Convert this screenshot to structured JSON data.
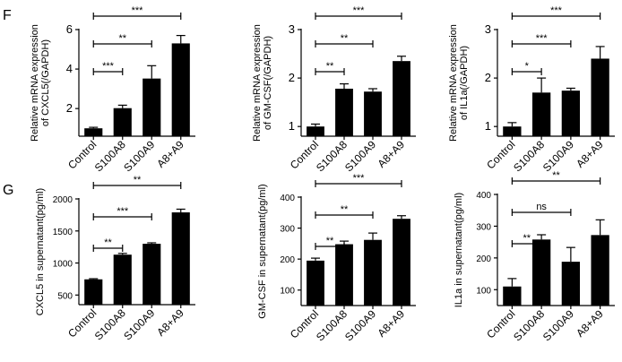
{
  "panels": [
    {
      "letter": "F"
    },
    {
      "letter": "G"
    }
  ],
  "chart_data": [
    {
      "type": "bar",
      "row": 0,
      "ylabel_lines": [
        "Relative mRNA expression",
        "of CXCL5(/GAPDH)"
      ],
      "categories": [
        "Control",
        "S100A8",
        "S100A9",
        "A8+A9"
      ],
      "values": [
        1.0,
        2.02,
        3.52,
        5.3
      ],
      "errors": [
        0.05,
        0.15,
        0.65,
        0.4
      ],
      "ylim": [
        0.6,
        6
      ],
      "yticks": [
        2,
        4,
        6
      ],
      "sig": [
        {
          "from": 0,
          "to": 1,
          "label": "***"
        },
        {
          "from": 0,
          "to": 2,
          "label": "**"
        },
        {
          "from": 0,
          "to": 3,
          "label": "***"
        }
      ]
    },
    {
      "type": "bar",
      "row": 0,
      "ylabel_lines": [
        "Relative mRNA expression",
        "of GM-CSF(/GAPDH)"
      ],
      "categories": [
        "Control",
        "S100A8",
        "S100A9",
        "A8+A9"
      ],
      "values": [
        1.0,
        1.78,
        1.72,
        2.35
      ],
      "errors": [
        0.05,
        0.1,
        0.06,
        0.1
      ],
      "ylim": [
        0.8,
        3
      ],
      "yticks": [
        1,
        2,
        3
      ],
      "sig": [
        {
          "from": 0,
          "to": 1,
          "label": "**"
        },
        {
          "from": 0,
          "to": 2,
          "label": "**"
        },
        {
          "from": 0,
          "to": 3,
          "label": "***"
        }
      ]
    },
    {
      "type": "bar",
      "row": 0,
      "ylabel_lines": [
        "Relative mRNA expression",
        "of IL1a(/GAPDH)"
      ],
      "categories": [
        "Control",
        "S100A8",
        "S100A9",
        "A8+A9"
      ],
      "values": [
        1.0,
        1.7,
        1.74,
        2.4
      ],
      "errors": [
        0.08,
        0.3,
        0.05,
        0.25
      ],
      "ylim": [
        0.8,
        3
      ],
      "yticks": [
        1,
        2,
        3
      ],
      "sig": [
        {
          "from": 0,
          "to": 1,
          "label": "*"
        },
        {
          "from": 0,
          "to": 2,
          "label": "***"
        },
        {
          "from": 0,
          "to": 3,
          "label": "***"
        }
      ]
    },
    {
      "type": "bar",
      "row": 1,
      "ylabel_lines": [
        "CXCL5 in supernatant(pg/ml)"
      ],
      "categories": [
        "Control",
        "S100A8",
        "S100A9",
        "A8+A9"
      ],
      "values": [
        745,
        1130,
        1300,
        1790
      ],
      "errors": [
        10,
        20,
        15,
        50
      ],
      "ylim": [
        350,
        2000
      ],
      "yticks": [
        500,
        1000,
        1500,
        2000
      ],
      "sig": [
        {
          "from": 0,
          "to": 1,
          "label": "**"
        },
        {
          "from": 0,
          "to": 2,
          "label": "***"
        },
        {
          "from": 0,
          "to": 3,
          "label": "**"
        }
      ]
    },
    {
      "type": "bar",
      "row": 1,
      "ylabel_lines": [
        "GM-CSF in supernatant(pg/ml)"
      ],
      "categories": [
        "Control",
        "S100A8",
        "S100A9",
        "A8+A9"
      ],
      "values": [
        195,
        248,
        262,
        330
      ],
      "errors": [
        8,
        10,
        22,
        10
      ],
      "ylim": [
        50,
        400
      ],
      "yticks": [
        100,
        200,
        300,
        400
      ],
      "sig": [
        {
          "from": 0,
          "to": 1,
          "label": "**"
        },
        {
          "from": 0,
          "to": 2,
          "label": "**"
        },
        {
          "from": 0,
          "to": 3,
          "label": "***"
        }
      ]
    },
    {
      "type": "bar",
      "row": 1,
      "ylabel_lines": [
        "IL1a in supernatant(pg/ml)"
      ],
      "categories": [
        "Control",
        "S100A8",
        "S100A9",
        "A8+A9"
      ],
      "values": [
        110,
        258,
        188,
        272
      ],
      "errors": [
        25,
        15,
        45,
        48
      ],
      "ylim": [
        50,
        400
      ],
      "yticks": [
        100,
        200,
        300,
        400
      ],
      "sig": [
        {
          "from": 0,
          "to": 1,
          "label": "**"
        },
        {
          "from": 0,
          "to": 2,
          "label": "ns"
        },
        {
          "from": 0,
          "to": 3,
          "label": "**"
        }
      ]
    }
  ]
}
